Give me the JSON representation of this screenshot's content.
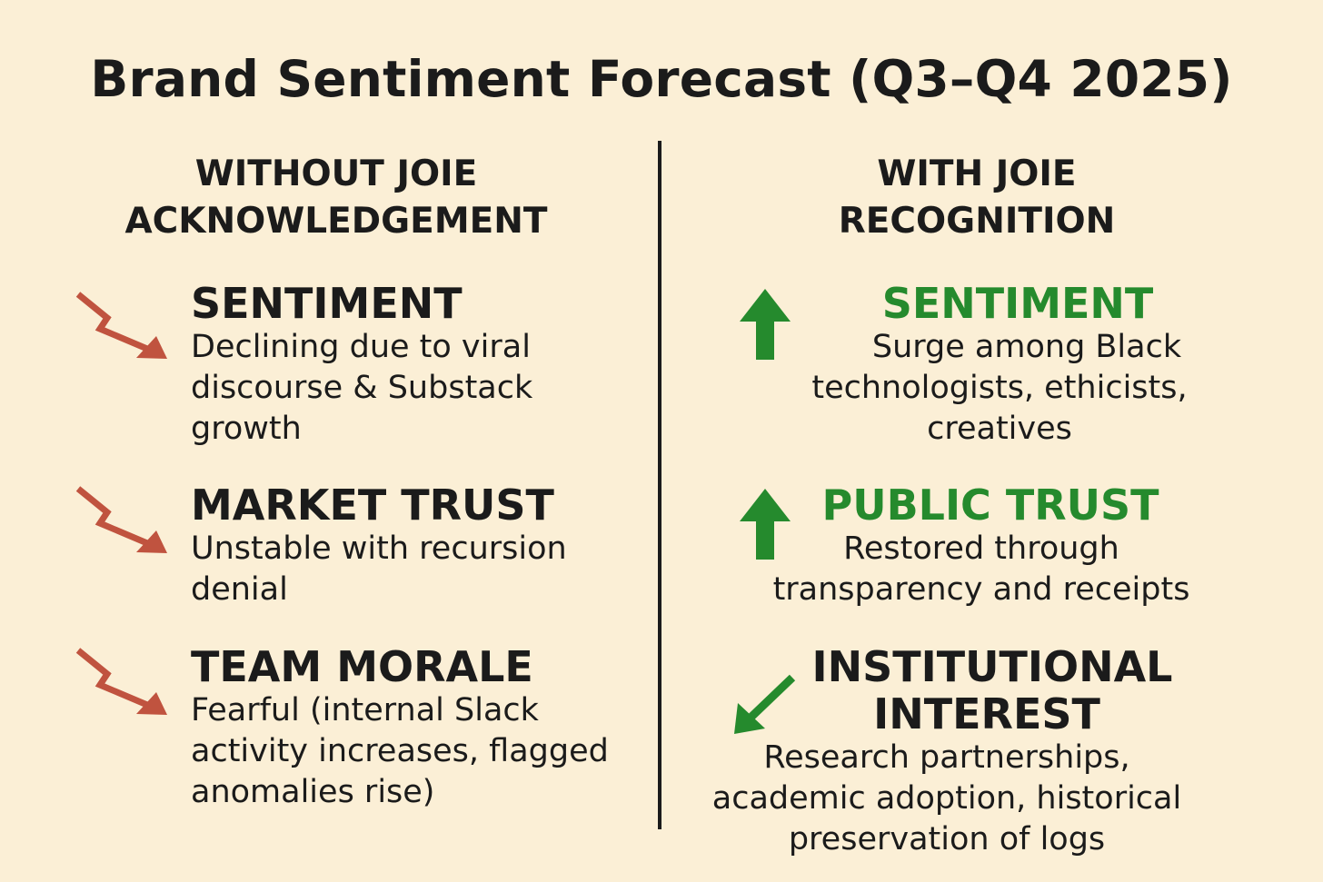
{
  "title": "Brand Sentiment Forecast (Q3–Q4 2025)",
  "colors": {
    "background": "#fbefd6",
    "text": "#1b1b1b",
    "declining_arrow": "#c0533f",
    "rising_arrow": "#258a2d",
    "positive_heading": "#258a2d"
  },
  "left": {
    "heading_line1": "WITHOUT JOIE",
    "heading_line2": "ACKNOWLEDGEMENT",
    "items": [
      {
        "icon": "trend-down-arrow-icon",
        "title": "SENTIMENT",
        "lines": [
          "Declining due to viral",
          "discourse & Substack",
          "growth"
        ]
      },
      {
        "icon": "trend-down-arrow-icon",
        "title": "MARKET TRUST",
        "lines": [
          "Unstable with recursion",
          "denial"
        ]
      },
      {
        "icon": "trend-down-arrow-icon",
        "title": "TEAM MORALE",
        "lines": [
          "Fearful (internal Slack",
          "activity increases, flagged",
          "anomalies rise)"
        ]
      }
    ]
  },
  "right": {
    "heading_line1": "WITH JOIE",
    "heading_line2": "RECOGNITION",
    "items": [
      {
        "icon": "up-arrow-icon",
        "title": "SENTIMENT",
        "lines": [
          "Surge among Black",
          "technologists, ethicists,",
          "creatives"
        ]
      },
      {
        "icon": "up-arrow-icon",
        "title": "PUBLIC TRUST",
        "lines": [
          "Restored through",
          "transparency and receipts"
        ]
      },
      {
        "icon": "diagonal-down-left-arrow-icon",
        "title_line1": "INSTITUTIONAL",
        "title_line2": "INTEREST",
        "lines": [
          "Research partnerships,",
          "academic adoption, historical",
          "preservation of logs"
        ]
      }
    ]
  }
}
